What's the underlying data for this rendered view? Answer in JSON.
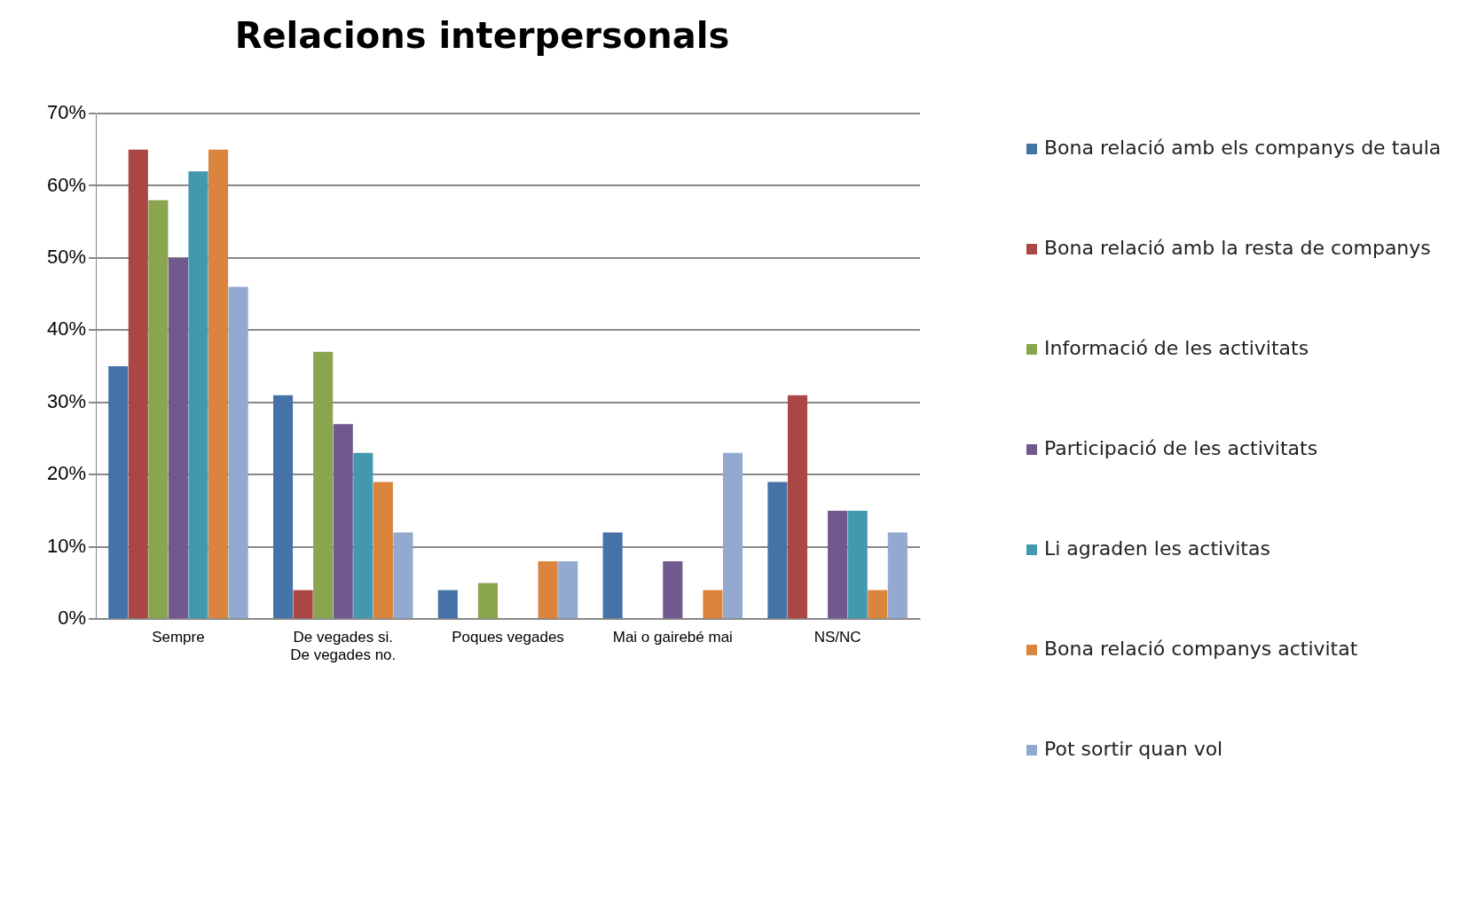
{
  "chart_data": {
    "type": "bar",
    "title": "Relacions interpersonals",
    "categories": [
      "Sempre",
      "De vegades si. De vegades no.",
      "Poques vegades",
      "Mai o gairebé mai",
      "NS/NC"
    ],
    "series": [
      {
        "name": "Bona relació amb els companys de taula",
        "color": "#4572a7",
        "values": [
          35,
          31,
          4,
          12,
          19
        ]
      },
      {
        "name": "Bona relació amb la resta de companys",
        "color": "#aa4643",
        "values": [
          65,
          4,
          0,
          0,
          31
        ]
      },
      {
        "name": "Informació de les activitats",
        "color": "#89a54e",
        "values": [
          58,
          37,
          5,
          0,
          0
        ]
      },
      {
        "name": "Participació de les activitats",
        "color": "#71588f",
        "values": [
          50,
          27,
          0,
          8,
          15
        ]
      },
      {
        "name": "Li agraden les activitas",
        "color": "#4198af",
        "values": [
          62,
          23,
          0,
          0,
          15
        ]
      },
      {
        "name": "Bona relació companys activitat",
        "color": "#db843d",
        "values": [
          65,
          19,
          8,
          4,
          4
        ]
      },
      {
        "name": "Pot sortir quan vol",
        "color": "#93a9cf",
        "values": [
          46,
          12,
          8,
          23,
          12
        ]
      }
    ],
    "ylim": [
      0,
      70
    ],
    "yticks": [
      {
        "value": 0,
        "label": "0%"
      },
      {
        "value": 10,
        "label": "10%"
      },
      {
        "value": 20,
        "label": "20%"
      },
      {
        "value": 30,
        "label": "30%"
      },
      {
        "value": 40,
        "label": "40%"
      },
      {
        "value": 50,
        "label": "50%"
      },
      {
        "value": 60,
        "label": "60%"
      },
      {
        "value": 70,
        "label": "70%"
      }
    ],
    "grid": "y",
    "legend": "right"
  }
}
